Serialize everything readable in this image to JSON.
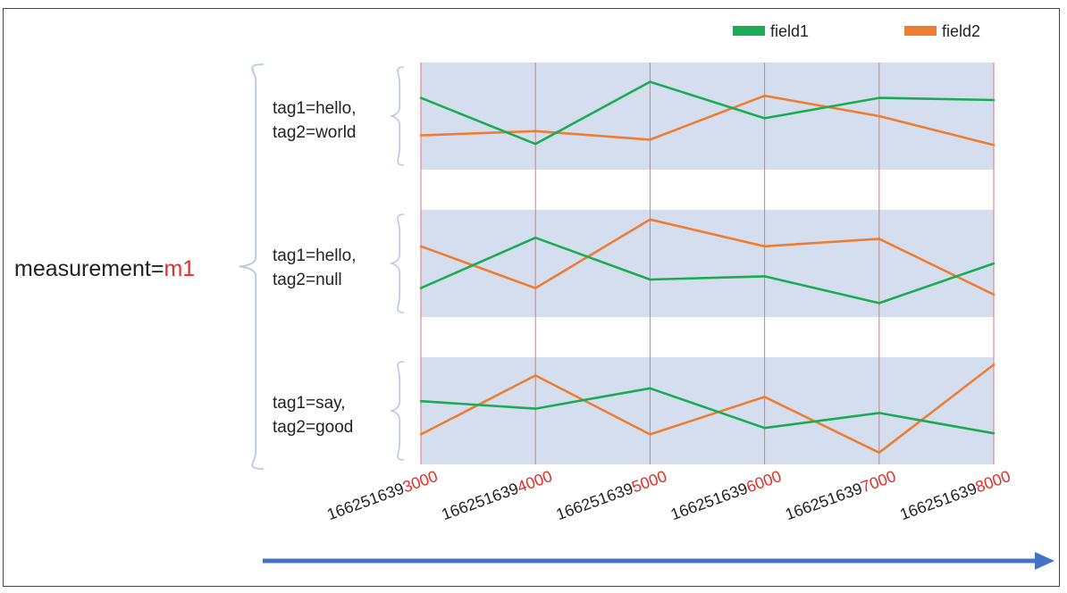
{
  "measurement": {
    "prefix": "measurement=",
    "value": "m1"
  },
  "legend": [
    {
      "label": "field1",
      "color": "#1aab55"
    },
    {
      "label": "field2",
      "color": "#ef7d31"
    }
  ],
  "colors": {
    "band": "#d5deef",
    "gridline": "#e57373",
    "brace": "#b8c8e3",
    "axis_arrow": "#4472c4",
    "highlight": "#e0302a",
    "text": "#222222"
  },
  "timestamps": [
    {
      "prefix": "166251639",
      "suffix": "3000"
    },
    {
      "prefix": "166251639",
      "suffix": "4000"
    },
    {
      "prefix": "166251639",
      "suffix": "5000"
    },
    {
      "prefix": "166251639",
      "suffix": "6000"
    },
    {
      "prefix": "166251639",
      "suffix": "7000"
    },
    {
      "prefix": "166251639",
      "suffix": "8000"
    }
  ],
  "series": [
    {
      "tag_line1": "tag1=hello,",
      "tag_line2": "tag2=world",
      "field1": [
        0.67,
        0.24,
        0.82,
        0.48,
        0.67,
        0.65
      ],
      "field2": [
        0.32,
        0.36,
        0.28,
        0.69,
        0.5,
        0.23
      ]
    },
    {
      "tag_line1": "tag1=hello,",
      "tag_line2": "tag2=null",
      "field1": [
        0.27,
        0.74,
        0.35,
        0.38,
        0.13,
        0.5
      ],
      "field2": [
        0.66,
        0.27,
        0.91,
        0.66,
        0.73,
        0.21
      ]
    },
    {
      "tag_line1": "tag1=say,",
      "tag_line2": "tag2=good",
      "field1": [
        0.59,
        0.52,
        0.71,
        0.34,
        0.48,
        0.29
      ],
      "field2": [
        0.28,
        0.83,
        0.28,
        0.63,
        0.11,
        0.93
      ]
    }
  ]
}
